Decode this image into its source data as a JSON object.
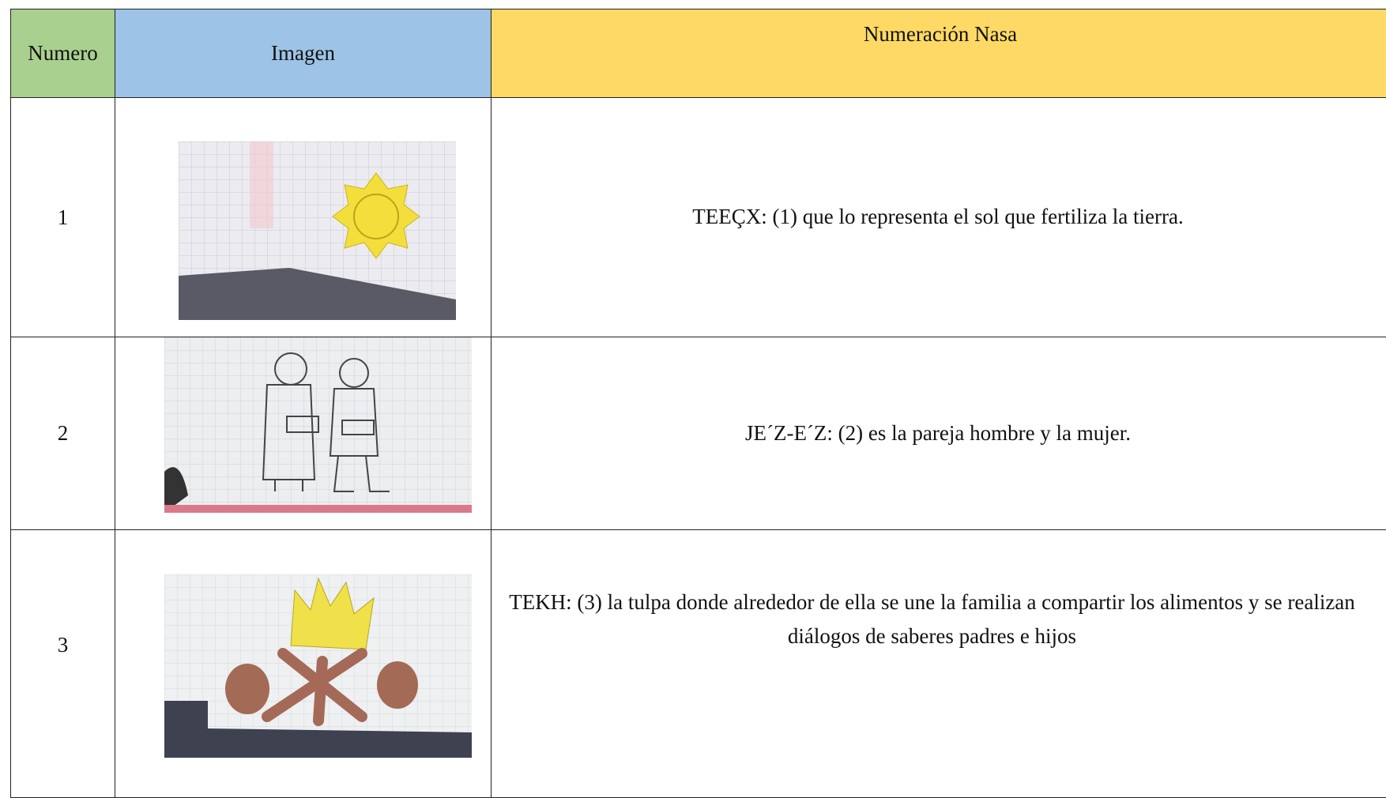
{
  "table": {
    "columns": [
      "Numero",
      "Imagen",
      "Numeración Nasa"
    ],
    "rows": [
      {
        "number": "1",
        "description": "TEEÇX: (1) que lo representa el sol que fertiliza la tierra."
      },
      {
        "number": "2",
        "description": "JE´Z-E´Z: (2) es la pareja hombre y la mujer."
      },
      {
        "number": "3",
        "description": "TEKH: (3) la tulpa donde alrededor de ella se une la familia a compartir los alimentos y se realizan diálogos de saberes padres e hijos"
      }
    ]
  }
}
